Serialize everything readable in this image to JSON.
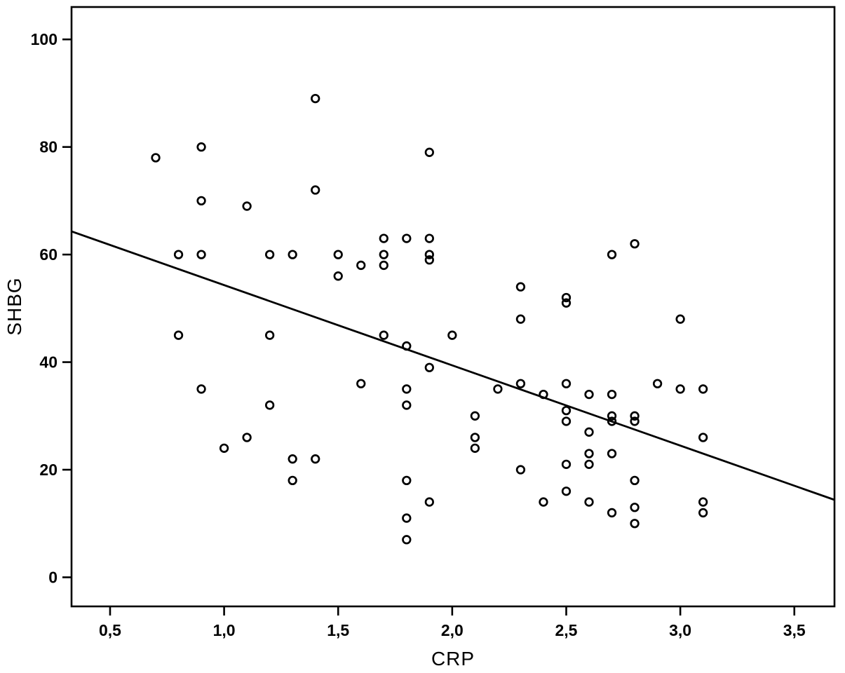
{
  "chart_data": {
    "type": "scatter",
    "title": "",
    "xlabel": "CRP",
    "ylabel": "SHBG",
    "x_range": [
      0.331,
      3.676
    ],
    "y_range": [
      -5.41,
      106.02
    ],
    "grid": false,
    "legend": "none",
    "x_ticks": [
      {
        "value": 0.5,
        "label": "0,5"
      },
      {
        "value": 1.0,
        "label": "1,0"
      },
      {
        "value": 1.5,
        "label": "1,5"
      },
      {
        "value": 2.0,
        "label": "2,0"
      },
      {
        "value": 2.5,
        "label": "2,5"
      },
      {
        "value": 3.0,
        "label": "3,0"
      },
      {
        "value": 3.5,
        "label": "3,5"
      }
    ],
    "y_ticks": [
      {
        "value": 0,
        "label": "0"
      },
      {
        "value": 20,
        "label": "20"
      },
      {
        "value": 40,
        "label": "40"
      },
      {
        "value": 60,
        "label": "60"
      },
      {
        "value": 80,
        "label": "80"
      },
      {
        "value": 100,
        "label": "100"
      }
    ],
    "marker": {
      "shape": "open-circle",
      "color": "#000000"
    },
    "colors": {
      "foreground": "#000000",
      "background": "#ffffff"
    },
    "regression_line": {
      "x1": 0.331,
      "y1": 64.3,
      "x2": 3.676,
      "y2": 14.4
    },
    "points": [
      [
        0.7,
        78
      ],
      [
        0.8,
        60
      ],
      [
        0.8,
        45
      ],
      [
        0.9,
        80
      ],
      [
        0.9,
        70
      ],
      [
        0.9,
        60
      ],
      [
        0.9,
        35
      ],
      [
        1.0,
        24
      ],
      [
        1.1,
        69
      ],
      [
        1.1,
        26
      ],
      [
        1.2,
        60
      ],
      [
        1.2,
        45
      ],
      [
        1.2,
        32
      ],
      [
        1.3,
        60
      ],
      [
        1.3,
        22
      ],
      [
        1.3,
        18
      ],
      [
        1.4,
        89
      ],
      [
        1.4,
        72
      ],
      [
        1.4,
        22
      ],
      [
        1.5,
        60
      ],
      [
        1.5,
        56
      ],
      [
        1.6,
        58
      ],
      [
        1.6,
        36
      ],
      [
        1.7,
        63
      ],
      [
        1.7,
        60
      ],
      [
        1.7,
        58
      ],
      [
        1.7,
        45
      ],
      [
        1.8,
        63
      ],
      [
        1.8,
        43
      ],
      [
        1.8,
        35
      ],
      [
        1.8,
        32
      ],
      [
        1.8,
        18
      ],
      [
        1.8,
        11
      ],
      [
        1.8,
        7
      ],
      [
        1.9,
        79
      ],
      [
        1.9,
        63
      ],
      [
        1.9,
        60
      ],
      [
        1.9,
        59
      ],
      [
        1.9,
        39
      ],
      [
        1.9,
        14
      ],
      [
        2.0,
        45
      ],
      [
        2.1,
        30
      ],
      [
        2.1,
        26
      ],
      [
        2.1,
        24
      ],
      [
        2.2,
        35
      ],
      [
        2.3,
        54
      ],
      [
        2.3,
        48
      ],
      [
        2.3,
        36
      ],
      [
        2.3,
        20
      ],
      [
        2.4,
        34
      ],
      [
        2.4,
        14
      ],
      [
        2.5,
        52
      ],
      [
        2.5,
        51
      ],
      [
        2.5,
        36
      ],
      [
        2.5,
        31
      ],
      [
        2.5,
        29
      ],
      [
        2.5,
        21
      ],
      [
        2.5,
        16
      ],
      [
        2.6,
        34
      ],
      [
        2.6,
        27
      ],
      [
        2.6,
        23
      ],
      [
        2.6,
        21
      ],
      [
        2.6,
        14
      ],
      [
        2.7,
        60
      ],
      [
        2.7,
        34
      ],
      [
        2.7,
        30
      ],
      [
        2.7,
        29
      ],
      [
        2.7,
        23
      ],
      [
        2.7,
        12
      ],
      [
        2.8,
        62
      ],
      [
        2.8,
        30
      ],
      [
        2.8,
        29
      ],
      [
        2.8,
        18
      ],
      [
        2.8,
        13
      ],
      [
        2.8,
        10
      ],
      [
        2.9,
        36
      ],
      [
        3.0,
        48
      ],
      [
        3.0,
        35
      ],
      [
        3.1,
        35
      ],
      [
        3.1,
        26
      ],
      [
        3.1,
        14
      ],
      [
        3.1,
        12
      ]
    ]
  }
}
